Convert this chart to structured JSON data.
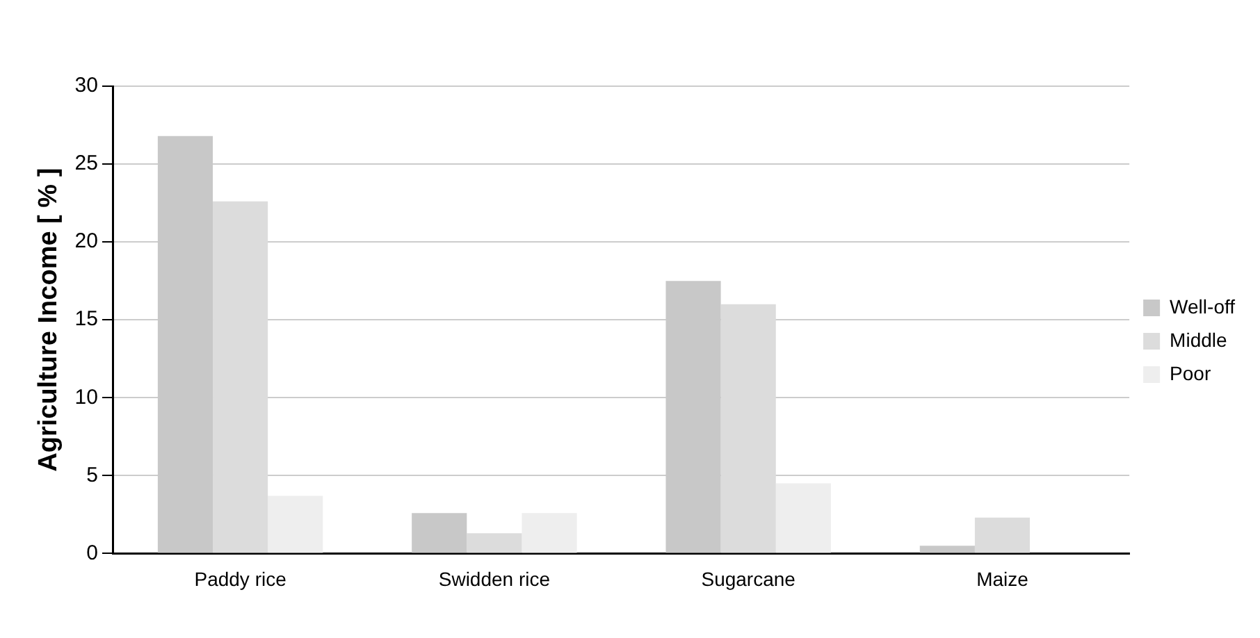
{
  "chart_data": {
    "type": "bar",
    "ylabel": "Agriculture Income [ % ]",
    "categories": [
      "Paddy rice",
      "Swidden rice",
      "Sugarcane",
      "Maize"
    ],
    "series": [
      {
        "name": "Well-off",
        "color": "#c8c8c8",
        "values": [
          26.8,
          2.6,
          17.5,
          0.5
        ]
      },
      {
        "name": "Middle",
        "color": "#dcdcdc",
        "values": [
          22.6,
          1.3,
          16.0,
          2.3
        ]
      },
      {
        "name": "Poor",
        "color": "#eeeeee",
        "values": [
          3.7,
          2.6,
          4.5,
          0
        ]
      }
    ],
    "ylim": [
      0,
      30
    ],
    "yticks": [
      0,
      5,
      10,
      15,
      20,
      25,
      30
    ],
    "grid": "y",
    "legend": "right"
  }
}
